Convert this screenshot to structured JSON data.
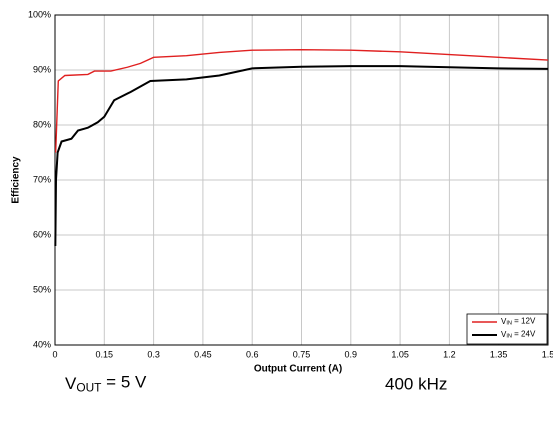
{
  "chart_data": {
    "type": "line",
    "xlabel": "Output Current (A)",
    "ylabel": "Efficiency",
    "xlim": [
      0,
      1.5
    ],
    "xticks": [
      0,
      0.15,
      0.3,
      0.45,
      0.6,
      0.75,
      0.9,
      1.05,
      1.2,
      1.35,
      1.5
    ],
    "ylim": [
      40,
      100
    ],
    "yticks": [
      {
        "value": 40,
        "label": "40%"
      },
      {
        "value": 50,
        "label": "50%"
      },
      {
        "value": 60,
        "label": "60%"
      },
      {
        "value": 70,
        "label": "70%"
      },
      {
        "value": 80,
        "label": "80%"
      },
      {
        "value": 90,
        "label": "90%"
      },
      {
        "value": 100,
        "label": "100%"
      }
    ],
    "grid": true,
    "legend": "lower right",
    "series": [
      {
        "name": "VIN = 12V",
        "color": "#e02020",
        "x": [
          0.002,
          0.01,
          0.03,
          0.1,
          0.12,
          0.17,
          0.22,
          0.26,
          0.3,
          0.4,
          0.5,
          0.6,
          0.75,
          0.9,
          1.05,
          1.2,
          1.35,
          1.5
        ],
        "values": [
          75,
          88,
          89,
          89.2,
          89.8,
          89.8,
          90.5,
          91.2,
          92.3,
          92.6,
          93.2,
          93.6,
          93.7,
          93.6,
          93.3,
          92.8,
          92.3,
          91.8
        ]
      },
      {
        "name": "VIN = 24V",
        "color": "#000000",
        "x": [
          0.001,
          0.003,
          0.008,
          0.02,
          0.05,
          0.07,
          0.1,
          0.13,
          0.15,
          0.18,
          0.23,
          0.29,
          0.4,
          0.5,
          0.6,
          0.75,
          0.9,
          1.05,
          1.2,
          1.35,
          1.5
        ],
        "values": [
          58,
          70,
          75,
          77,
          77.5,
          79,
          79.5,
          80.5,
          81.5,
          84.5,
          86,
          88,
          88.3,
          89,
          90.3,
          90.6,
          90.7,
          90.7,
          90.5,
          90.3,
          90.2
        ]
      }
    ],
    "annotations": [
      "VOUT = 5 V",
      "400 kHz"
    ]
  }
}
